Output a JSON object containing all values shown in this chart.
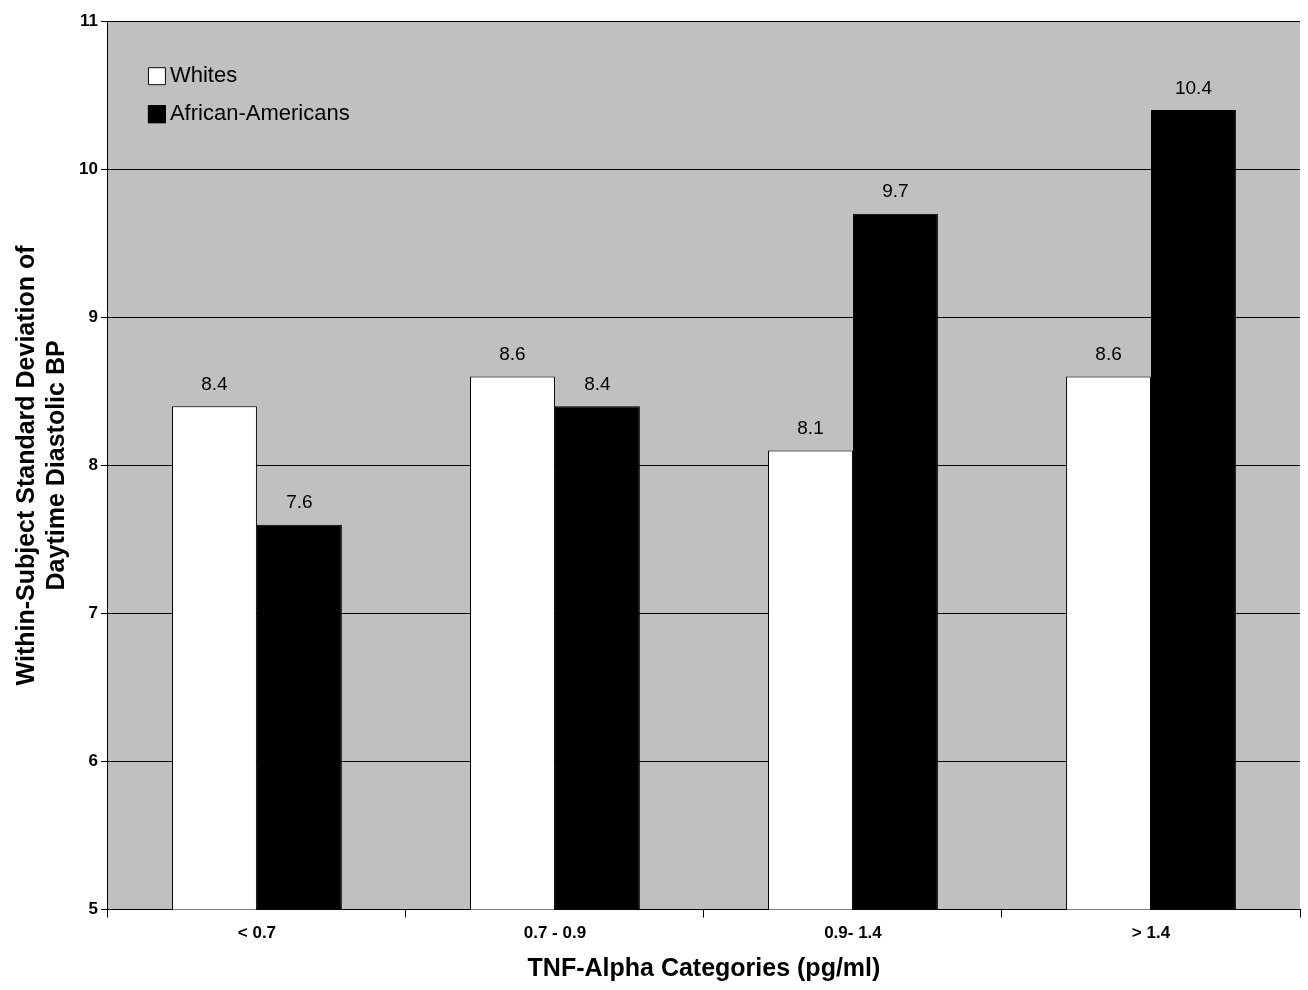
{
  "chart_data": {
    "type": "bar",
    "xlabel": "TNF-Alpha Categories (pg/ml)",
    "ylabel": "Within-Subject Standard Deviation of\nDaytime Diastolic BP",
    "categories": [
      "< 0.7",
      "0.7 - 0.9",
      "0.9- 1.4",
      "> 1.4"
    ],
    "series": [
      {
        "name": "Whites",
        "color": "#ffffff",
        "values": [
          8.4,
          8.6,
          8.1,
          8.6
        ]
      },
      {
        "name": "African-Americans",
        "color": "#000000",
        "values": [
          7.6,
          8.4,
          9.7,
          10.4
        ]
      }
    ],
    "ylim": [
      5,
      11
    ],
    "yticks": [
      5,
      6,
      7,
      8,
      9,
      10,
      11
    ],
    "grid": "y",
    "legend": "top left",
    "data_labels": true
  }
}
